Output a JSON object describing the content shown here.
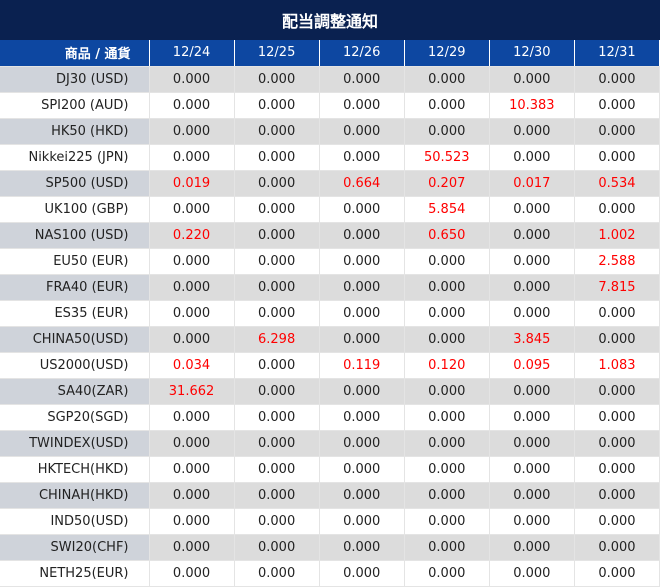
{
  "title": "配当調整通知",
  "colors": {
    "title_bg": "#0a2150",
    "header_bg": "#0d47a1",
    "highlight": "#ff0000"
  },
  "header": {
    "product_label": "商品 / 通貨",
    "dates": [
      "12/24",
      "12/25",
      "12/26",
      "12/29",
      "12/30",
      "12/31"
    ]
  },
  "rows": [
    {
      "name": "DJ30 (USD)",
      "values": [
        "0.000",
        "0.000",
        "0.000",
        "0.000",
        "0.000",
        "0.000"
      ]
    },
    {
      "name": "SPI200 (AUD)",
      "values": [
        "0.000",
        "0.000",
        "0.000",
        "0.000",
        "10.383",
        "0.000"
      ]
    },
    {
      "name": "HK50 (HKD)",
      "values": [
        "0.000",
        "0.000",
        "0.000",
        "0.000",
        "0.000",
        "0.000"
      ]
    },
    {
      "name": "Nikkei225 (JPN)",
      "values": [
        "0.000",
        "0.000",
        "0.000",
        "50.523",
        "0.000",
        "0.000"
      ]
    },
    {
      "name": "SP500 (USD)",
      "values": [
        "0.019",
        "0.000",
        "0.664",
        "0.207",
        "0.017",
        "0.534"
      ]
    },
    {
      "name": "UK100 (GBP)",
      "values": [
        "0.000",
        "0.000",
        "0.000",
        "5.854",
        "0.000",
        "0.000"
      ]
    },
    {
      "name": "NAS100 (USD)",
      "values": [
        "0.220",
        "0.000",
        "0.000",
        "0.650",
        "0.000",
        "1.002"
      ]
    },
    {
      "name": "EU50 (EUR)",
      "values": [
        "0.000",
        "0.000",
        "0.000",
        "0.000",
        "0.000",
        "2.588"
      ]
    },
    {
      "name": "FRA40 (EUR)",
      "values": [
        "0.000",
        "0.000",
        "0.000",
        "0.000",
        "0.000",
        "7.815"
      ]
    },
    {
      "name": "ES35 (EUR)",
      "values": [
        "0.000",
        "0.000",
        "0.000",
        "0.000",
        "0.000",
        "0.000"
      ]
    },
    {
      "name": "CHINA50(USD)",
      "values": [
        "0.000",
        "6.298",
        "0.000",
        "0.000",
        "3.845",
        "0.000"
      ]
    },
    {
      "name": "US2000(USD)",
      "values": [
        "0.034",
        "0.000",
        "0.119",
        "0.120",
        "0.095",
        "1.083"
      ]
    },
    {
      "name": "SA40(ZAR)",
      "values": [
        "31.662",
        "0.000",
        "0.000",
        "0.000",
        "0.000",
        "0.000"
      ]
    },
    {
      "name": "SGP20(SGD)",
      "values": [
        "0.000",
        "0.000",
        "0.000",
        "0.000",
        "0.000",
        "0.000"
      ]
    },
    {
      "name": "TWINDEX(USD)",
      "values": [
        "0.000",
        "0.000",
        "0.000",
        "0.000",
        "0.000",
        "0.000"
      ]
    },
    {
      "name": "HKTECH(HKD)",
      "values": [
        "0.000",
        "0.000",
        "0.000",
        "0.000",
        "0.000",
        "0.000"
      ]
    },
    {
      "name": "CHINAH(HKD)",
      "values": [
        "0.000",
        "0.000",
        "0.000",
        "0.000",
        "0.000",
        "0.000"
      ]
    },
    {
      "name": "IND50(USD)",
      "values": [
        "0.000",
        "0.000",
        "0.000",
        "0.000",
        "0.000",
        "0.000"
      ]
    },
    {
      "name": "SWI20(CHF)",
      "values": [
        "0.000",
        "0.000",
        "0.000",
        "0.000",
        "0.000",
        "0.000"
      ]
    },
    {
      "name": "NETH25(EUR)",
      "values": [
        "0.000",
        "0.000",
        "0.000",
        "0.000",
        "0.000",
        "0.000"
      ]
    }
  ]
}
